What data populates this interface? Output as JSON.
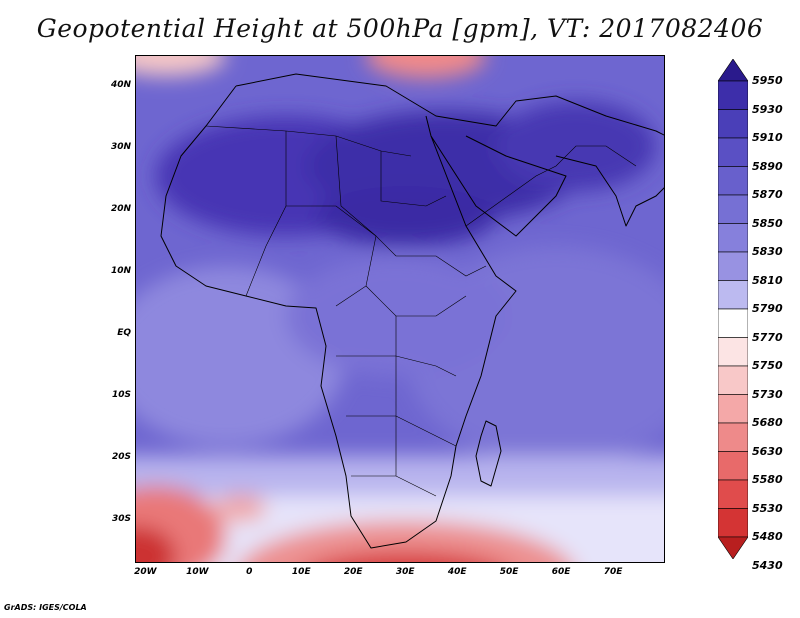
{
  "title": "Geopotential Height at 500hPa [gpm], VT: 2017082406",
  "map": {
    "variable": "Geopotential Height at 500hPa",
    "units": "gpm",
    "valid_time": "2017082406",
    "lon_range": [
      -22,
      80
    ],
    "lat_range": [
      -37,
      45
    ],
    "lat_ticks": [
      {
        "lat": 40,
        "label": "40N"
      },
      {
        "lat": 30,
        "label": "30N"
      },
      {
        "lat": 20,
        "label": "20N"
      },
      {
        "lat": 10,
        "label": "10N"
      },
      {
        "lat": 0,
        "label": "EQ"
      },
      {
        "lat": -10,
        "label": "10S"
      },
      {
        "lat": -20,
        "label": "20S"
      },
      {
        "lat": -30,
        "label": "30S"
      }
    ],
    "lon_ticks": [
      {
        "lon": -20,
        "label": "20W"
      },
      {
        "lon": -10,
        "label": "10W"
      },
      {
        "lon": 0,
        "label": "0"
      },
      {
        "lon": 10,
        "label": "10E"
      },
      {
        "lon": 20,
        "label": "20E"
      },
      {
        "lon": 30,
        "label": "30E"
      },
      {
        "lon": 40,
        "label": "40E"
      },
      {
        "lon": 50,
        "label": "50E"
      },
      {
        "lon": 60,
        "label": "60E"
      },
      {
        "lon": 70,
        "label": "70E"
      }
    ]
  },
  "colorbar": {
    "levels": [
      "5950",
      "5930",
      "5910",
      "5890",
      "5870",
      "5850",
      "5830",
      "5810",
      "5790",
      "5770",
      "5750",
      "5730",
      "5680",
      "5630",
      "5580",
      "5530",
      "5480",
      "5430"
    ],
    "colors": [
      "#2a1a8c",
      "#3d2eaa",
      "#4a3fb8",
      "#5a50c4",
      "#6860cc",
      "#7670d4",
      "#8680dc",
      "#9892e2",
      "#bcbaf0",
      "#ffffff",
      "#fce4e4",
      "#f8c8c8",
      "#f4a8a8",
      "#ee8a8a",
      "#e86a6a",
      "#e04c4c",
      "#d43434",
      "#b81f1f"
    ]
  },
  "footer": "GrADS: IGES/COLA"
}
